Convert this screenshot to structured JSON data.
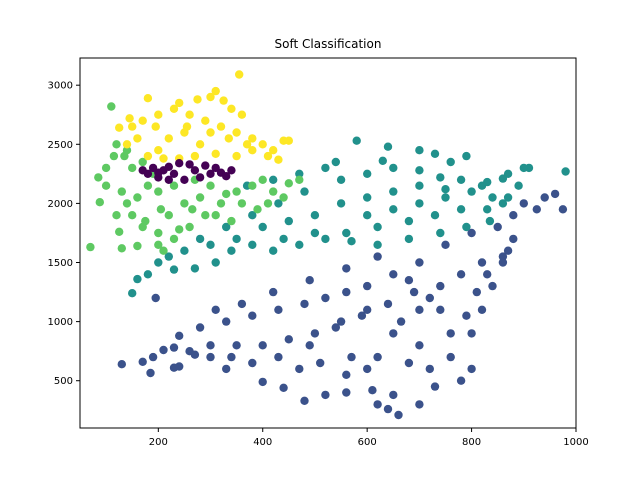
{
  "chart_data": {
    "type": "scatter",
    "title": "Soft Classification",
    "xlabel": "",
    "ylabel": "",
    "xlim": [
      50,
      1000
    ],
    "ylim": [
      100,
      3230
    ],
    "x_ticks": [
      200,
      400,
      600,
      800,
      1000
    ],
    "y_ticks": [
      500,
      1000,
      1500,
      2000,
      2500,
      3000
    ],
    "grid": false,
    "legend": "none",
    "series": [
      {
        "color": "#3b528b",
        "values": [
          [
            665,
            1000
          ],
          [
            700,
            1100
          ],
          [
            720,
            1200
          ],
          [
            650,
            900
          ],
          [
            600,
            1100
          ],
          [
            550,
            1000
          ],
          [
            500,
            900
          ],
          [
            450,
            850
          ],
          [
            400,
            800
          ],
          [
            350,
            800
          ],
          [
            300,
            800
          ],
          [
            260,
            750
          ],
          [
            230,
            780
          ],
          [
            620,
            700
          ],
          [
            680,
            650
          ],
          [
            720,
            600
          ],
          [
            760,
            700
          ],
          [
            800,
            900
          ],
          [
            820,
            1100
          ],
          [
            840,
            1300
          ],
          [
            860,
            1500
          ],
          [
            880,
            1700
          ],
          [
            850,
            1800
          ],
          [
            800,
            1750
          ],
          [
            750,
            1650
          ],
          [
            700,
            1500
          ],
          [
            650,
            1400
          ],
          [
            600,
            1300
          ],
          [
            560,
            1250
          ],
          [
            520,
            1200
          ],
          [
            480,
            1150
          ],
          [
            430,
            1100
          ],
          [
            380,
            1050
          ],
          [
            330,
            1000
          ],
          [
            280,
            950
          ],
          [
            240,
            880
          ],
          [
            210,
            760
          ],
          [
            190,
            700
          ],
          [
            170,
            660
          ],
          [
            130,
            640
          ],
          [
            185,
            565
          ],
          [
            230,
            610
          ],
          [
            240,
            620
          ],
          [
            195,
            1200
          ],
          [
            330,
            600
          ],
          [
            400,
            490
          ],
          [
            440,
            440
          ],
          [
            480,
            330
          ],
          [
            520,
            380
          ],
          [
            560,
            400
          ],
          [
            610,
            420
          ],
          [
            650,
            380
          ],
          [
            700,
            300
          ],
          [
            660,
            210
          ],
          [
            640,
            260
          ],
          [
            620,
            300
          ],
          [
            730,
            450
          ],
          [
            780,
            500
          ],
          [
            800,
            600
          ],
          [
            940,
            2050
          ],
          [
            960,
            2080
          ],
          [
            975,
            1950
          ],
          [
            925,
            1950
          ],
          [
            900,
            2000
          ],
          [
            880,
            1900
          ],
          [
            870,
            1600
          ],
          [
            860,
            1550
          ],
          [
            820,
            1500
          ],
          [
            780,
            1400
          ],
          [
            740,
            1300
          ],
          [
            690,
            1250
          ],
          [
            640,
            1150
          ],
          [
            590,
            1050
          ],
          [
            540,
            950
          ],
          [
            490,
            800
          ],
          [
            430,
            700
          ],
          [
            380,
            650
          ],
          [
            340,
            700
          ],
          [
            300,
            700
          ],
          [
            270,
            720
          ],
          [
            560,
            550
          ],
          [
            600,
            600
          ],
          [
            700,
            800
          ],
          [
            760,
            900
          ],
          [
            790,
            1050
          ],
          [
            810,
            1250
          ],
          [
            830,
            1400
          ],
          [
            570,
            700
          ],
          [
            470,
            600
          ],
          [
            510,
            650
          ],
          [
            740,
            1100
          ],
          [
            680,
            1350
          ],
          [
            620,
            1550
          ],
          [
            560,
            1450
          ],
          [
            490,
            1350
          ],
          [
            420,
            1250
          ],
          [
            360,
            1150
          ],
          [
            310,
            1100
          ]
        ]
      },
      {
        "color": "#21918c",
        "values": [
          [
            500,
            1900
          ],
          [
            550,
            2000
          ],
          [
            600,
            2050
          ],
          [
            650,
            2100
          ],
          [
            700,
            2150
          ],
          [
            750,
            2120
          ],
          [
            800,
            2100
          ],
          [
            840,
            2050
          ],
          [
            860,
            2000
          ],
          [
            450,
            1850
          ],
          [
            400,
            1800
          ],
          [
            350,
            1700
          ],
          [
            300,
            1650
          ],
          [
            250,
            1600
          ],
          [
            220,
            1550
          ],
          [
            200,
            1500
          ],
          [
            550,
            2200
          ],
          [
            600,
            2250
          ],
          [
            650,
            2300
          ],
          [
            700,
            2280
          ],
          [
            740,
            2220
          ],
          [
            780,
            2200
          ],
          [
            820,
            2150
          ],
          [
            480,
            2100
          ],
          [
            430,
            2000
          ],
          [
            380,
            1900
          ],
          [
            330,
            1800
          ],
          [
            280,
            1700
          ],
          [
            560,
            1750
          ],
          [
            620,
            1800
          ],
          [
            680,
            1850
          ],
          [
            730,
            1900
          ],
          [
            780,
            1950
          ],
          [
            830,
            1950
          ],
          [
            870,
            2050
          ],
          [
            890,
            2150
          ],
          [
            910,
            2300
          ],
          [
            900,
            2300
          ],
          [
            870,
            2250
          ],
          [
            860,
            2210
          ],
          [
            830,
            2180
          ],
          [
            980,
            2270
          ],
          [
            580,
            2530
          ],
          [
            640,
            2480
          ],
          [
            700,
            2450
          ],
          [
            730,
            2420
          ],
          [
            760,
            2350
          ],
          [
            790,
            2400
          ],
          [
            630,
            2360
          ],
          [
            540,
            2350
          ],
          [
            520,
            2300
          ],
          [
            470,
            2250
          ],
          [
            420,
            2200
          ],
          [
            370,
            2150
          ],
          [
            310,
            1500
          ],
          [
            270,
            1450
          ],
          [
            230,
            1440
          ],
          [
            180,
            1400
          ],
          [
            160,
            1360
          ],
          [
            150,
            1240
          ],
          [
            420,
            1600
          ],
          [
            470,
            1650
          ],
          [
            520,
            1700
          ],
          [
            570,
            1680
          ],
          [
            620,
            1650
          ],
          [
            680,
            1700
          ],
          [
            740,
            1750
          ],
          [
            790,
            1800
          ],
          [
            835,
            1850
          ],
          [
            600,
            1900
          ],
          [
            650,
            1950
          ],
          [
            700,
            2000
          ],
          [
            750,
            2050
          ],
          [
            500,
            1750
          ],
          [
            440,
            1700
          ],
          [
            380,
            1650
          ],
          [
            340,
            1600
          ]
        ]
      },
      {
        "color": "#5ec962",
        "values": [
          [
            250,
            2000
          ],
          [
            220,
            1900
          ],
          [
            200,
            2100
          ],
          [
            180,
            2150
          ],
          [
            160,
            2050
          ],
          [
            140,
            2000
          ],
          [
            130,
            2100
          ],
          [
            150,
            1900
          ],
          [
            170,
            1800
          ],
          [
            200,
            1750
          ],
          [
            230,
            1700
          ],
          [
            260,
            1800
          ],
          [
            290,
            1900
          ],
          [
            320,
            2000
          ],
          [
            350,
            2100
          ],
          [
            380,
            2150
          ],
          [
            400,
            2200
          ],
          [
            420,
            2100
          ],
          [
            440,
            2050
          ],
          [
            300,
            2150
          ],
          [
            270,
            2200
          ],
          [
            230,
            2150
          ],
          [
            190,
            2250
          ],
          [
            170,
            2350
          ],
          [
            150,
            2300
          ],
          [
            135,
            2400
          ],
          [
            120,
            2500
          ],
          [
            140,
            2450
          ],
          [
            110,
            2820
          ],
          [
            115,
            2400
          ],
          [
            100,
            2300
          ],
          [
            85,
            2220
          ],
          [
            88,
            2010
          ],
          [
            70,
            1630
          ],
          [
            100,
            2150
          ],
          [
            120,
            1900
          ],
          [
            125,
            1760
          ],
          [
            130,
            1620
          ],
          [
            160,
            1640
          ],
          [
            200,
            1650
          ],
          [
            210,
            1600
          ],
          [
            240,
            1780
          ],
          [
            280,
            2050
          ],
          [
            330,
            2080
          ],
          [
            360,
            2000
          ],
          [
            390,
            1950
          ],
          [
            410,
            2000
          ],
          [
            450,
            2170
          ],
          [
            470,
            2200
          ],
          [
            175,
            1850
          ],
          [
            205,
            1950
          ],
          [
            265,
            1950
          ],
          [
            310,
            1900
          ],
          [
            340,
            1850
          ]
        ]
      },
      {
        "color": "#fde725",
        "values": [
          [
            280,
            2500
          ],
          [
            250,
            2600
          ],
          [
            220,
            2550
          ],
          [
            200,
            2450
          ],
          [
            180,
            2400
          ],
          [
            160,
            2550
          ],
          [
            150,
            2650
          ],
          [
            170,
            2700
          ],
          [
            200,
            2750
          ],
          [
            230,
            2800
          ],
          [
            260,
            2750
          ],
          [
            290,
            2700
          ],
          [
            320,
            2650
          ],
          [
            350,
            2600
          ],
          [
            380,
            2550
          ],
          [
            400,
            2500
          ],
          [
            420,
            2450
          ],
          [
            440,
            2530
          ],
          [
            450,
            2530
          ],
          [
            380,
            2450
          ],
          [
            350,
            2400
          ],
          [
            310,
            2420
          ],
          [
            270,
            2400
          ],
          [
            240,
            2380
          ],
          [
            210,
            2380
          ],
          [
            180,
            2890
          ],
          [
            240,
            2850
          ],
          [
            275,
            2880
          ],
          [
            300,
            2900
          ],
          [
            310,
            2950
          ],
          [
            325,
            2870
          ],
          [
            340,
            2800
          ],
          [
            360,
            2750
          ],
          [
            355,
            3090
          ],
          [
            145,
            2720
          ],
          [
            125,
            2640
          ],
          [
            140,
            2500
          ],
          [
            195,
            2650
          ],
          [
            255,
            2650
          ],
          [
            300,
            2600
          ],
          [
            335,
            2550
          ],
          [
            370,
            2500
          ],
          [
            410,
            2400
          ],
          [
            430,
            2370
          ]
        ]
      },
      {
        "color": "#440154",
        "values": [
          [
            230,
            2250
          ],
          [
            210,
            2280
          ],
          [
            190,
            2300
          ],
          [
            200,
            2220
          ],
          [
            220,
            2200
          ],
          [
            250,
            2200
          ],
          [
            280,
            2220
          ],
          [
            300,
            2250
          ],
          [
            320,
            2260
          ],
          [
            310,
            2300
          ],
          [
            290,
            2320
          ],
          [
            260,
            2330
          ],
          [
            240,
            2340
          ],
          [
            220,
            2310
          ],
          [
            200,
            2260
          ],
          [
            180,
            2250
          ],
          [
            170,
            2280
          ],
          [
            330,
            2230
          ],
          [
            340,
            2280
          ],
          [
            270,
            2280
          ]
        ]
      }
    ]
  }
}
